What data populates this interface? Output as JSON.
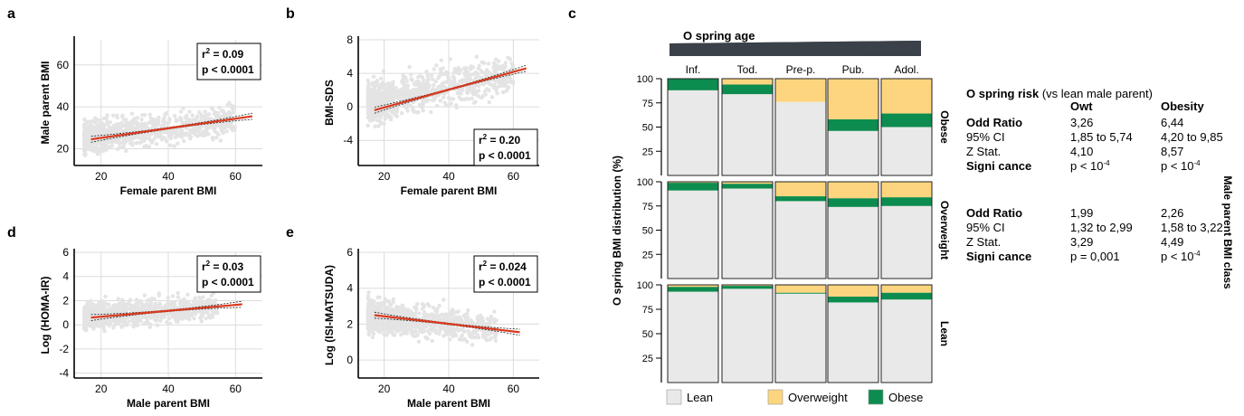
{
  "colors": {
    "scatter": "#e4e4e4",
    "fit": "#d93a1f",
    "ci": "#222222",
    "grid": "#dcdcdc",
    "axis": "#000000",
    "lean": "#e9e9e9",
    "overweight": "#fdd57e",
    "obese": "#0c8c4e",
    "wedge": "#3a4148"
  },
  "chart_data": [
    {
      "panel": "a",
      "type": "scatter",
      "xlabel": "Female parent  BMI",
      "ylabel": "Male parent BMI",
      "xlim": [
        12,
        68
      ],
      "ylim": [
        12,
        72
      ],
      "xticks": [
        20,
        40,
        60
      ],
      "yticks": [
        20,
        40,
        60
      ],
      "fit": [
        [
          17,
          24.5
        ],
        [
          65,
          35.5
        ]
      ],
      "annotation": {
        "r2": "0.09",
        "p": "p < 0.0001"
      },
      "scatter_cloud": {
        "x_range": [
          15,
          60
        ],
        "y_center": [
          25,
          34
        ],
        "spread": 5
      }
    },
    {
      "panel": "b",
      "type": "scatter",
      "xlabel": "Female parent BMI",
      "ylabel": "BMI-SDS",
      "xlim": [
        12,
        68
      ],
      "ylim": [
        -7,
        8
      ],
      "xticks": [
        20,
        40,
        60
      ],
      "yticks": [
        8,
        4,
        0,
        -4
      ],
      "fit": [
        [
          17,
          -0.4
        ],
        [
          64,
          4.6
        ]
      ],
      "annotation": {
        "r2": "0.20",
        "p": "p < 0.0001"
      },
      "scatter_cloud": {
        "x_range": [
          15,
          60
        ],
        "y_center": [
          0.5,
          4
        ],
        "spread": 1.6
      }
    },
    {
      "panel": "d",
      "type": "scatter",
      "xlabel": "Male parent BMI",
      "ylabel": "Log (HOMA-IR)",
      "xlim": [
        12,
        68
      ],
      "ylim": [
        -4.4,
        6
      ],
      "xticks": [
        20,
        40,
        60
      ],
      "yticks": [
        6,
        4,
        2,
        0,
        -2,
        -4
      ],
      "fit": [
        [
          17,
          0.6
        ],
        [
          62,
          1.7
        ]
      ],
      "annotation": {
        "r2": "0.03",
        "p": "p < 0.0001"
      },
      "scatter_cloud": {
        "x_range": [
          15,
          55
        ],
        "y_center": [
          0.7,
          1.5
        ],
        "spread": 0.7
      }
    },
    {
      "panel": "e",
      "type": "scatter",
      "xlabel": "Male parent BMI",
      "ylabel": "Log (ISI-MATSUDA)",
      "xlim": [
        12,
        68
      ],
      "ylim": [
        -1,
        6
      ],
      "xticks": [
        20,
        40,
        60
      ],
      "yticks": [
        6,
        4,
        2,
        0
      ],
      "fit": [
        [
          17,
          2.5
        ],
        [
          62,
          1.55
        ]
      ],
      "annotation": {
        "r2": "0.024",
        "p": "p < 0.0001"
      },
      "scatter_cloud": {
        "x_range": [
          15,
          55
        ],
        "y_center": [
          2.5,
          1.7
        ],
        "spread": 0.6
      }
    },
    {
      "panel": "c",
      "type": "bar",
      "stacked": true,
      "categories": [
        "Inf.",
        "Tod.",
        "Pre-p.",
        "Pub.",
        "Adol."
      ],
      "ylabel": "O  spring BMI distribution (%)",
      "yticks": [
        100,
        75,
        50,
        25
      ],
      "top_label": "O  spring age",
      "right_label": "Male parent BMI class",
      "legend": [
        "Lean",
        "Overweight",
        "Obese"
      ],
      "rows": [
        {
          "name": "Obese",
          "lean": [
            88,
            84,
            76,
            46,
            50
          ],
          "overweight": [
            0,
            6,
            24,
            42,
            36
          ],
          "obese": [
            12,
            10,
            0,
            12,
            14
          ]
        },
        {
          "name": "Overweight",
          "lean": [
            91,
            93,
            80,
            74,
            75
          ],
          "overweight": [
            1,
            2,
            15,
            17,
            16
          ],
          "obese": [
            8,
            5,
            5,
            9,
            9
          ]
        },
        {
          "name": "Lean",
          "lean": [
            93,
            96,
            91,
            82,
            85
          ],
          "overweight": [
            2,
            1,
            8,
            12,
            8
          ],
          "obese": [
            5,
            3,
            1,
            6,
            7
          ]
        }
      ]
    }
  ],
  "labels": {
    "a": "a",
    "b": "b",
    "c": "c",
    "d": "d",
    "e": "e"
  },
  "risk_table": {
    "title_bold": "O  spring risk",
    "title_rest": " (vs lean male parent)",
    "columns": [
      "Owt",
      "Obesity"
    ],
    "obese_block": [
      {
        "label": "Odd Ratio",
        "bold": true,
        "owt": "3,26",
        "obesity": "6,44"
      },
      {
        "label": "95% CI",
        "bold": false,
        "owt": "1,85 to 5,74",
        "obesity": "4,20 to 9,85"
      },
      {
        "label": "Z Stat.",
        "bold": false,
        "owt": "4,10",
        "obesity": "8,57"
      },
      {
        "label": "Signi  cance",
        "bold": true,
        "owt": "p < 10",
        "owt_sup": "-4",
        "obesity": "p < 10",
        "obesity_sup": "-4"
      }
    ],
    "overweight_block": [
      {
        "label": "Odd Ratio",
        "bold": true,
        "owt": "1,99",
        "obesity": "2,26"
      },
      {
        "label": "95% CI",
        "bold": false,
        "owt": "1,32 to 2,99",
        "obesity": "1,58 to 3,22"
      },
      {
        "label": "Z Stat.",
        "bold": false,
        "owt": "3,29",
        "obesity": "4,49"
      },
      {
        "label": "Signi  cance",
        "bold": true,
        "owt": "p = 0,001",
        "owt_sup": "",
        "obesity": "p < 10",
        "obesity_sup": "-4"
      }
    ]
  }
}
